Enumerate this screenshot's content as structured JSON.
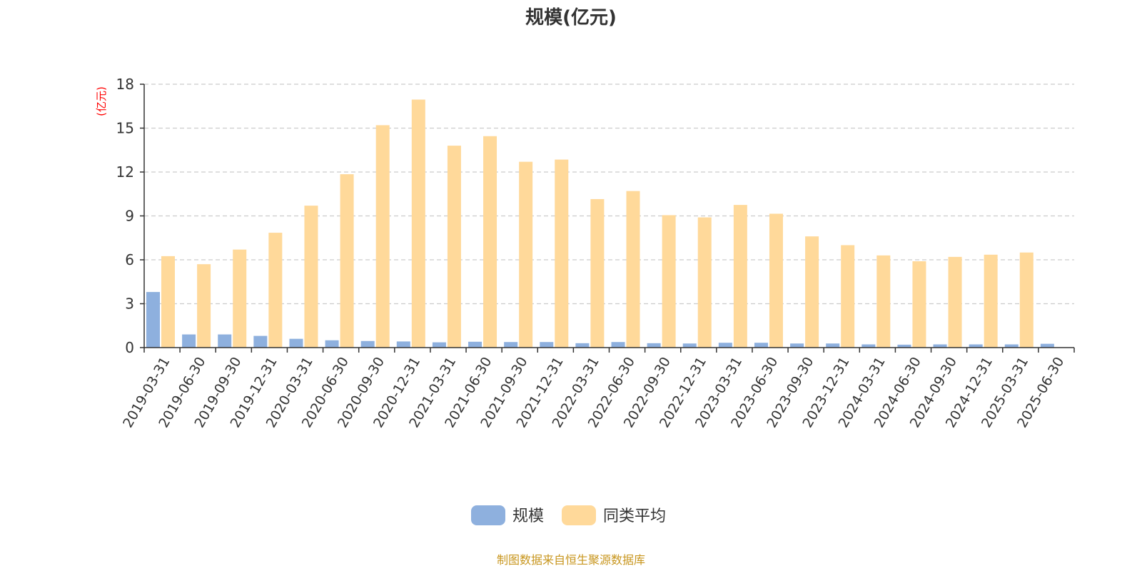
{
  "chart_data": {
    "type": "bar",
    "title": "规模(亿元)",
    "ylabel": "(亿元)",
    "ylim": [
      0,
      18
    ],
    "yticks": [
      0,
      3,
      6,
      9,
      12,
      15,
      18
    ],
    "grid": "horizontal-dashed",
    "legend_position": "bottom",
    "categories": [
      "2019-03-31",
      "2019-06-30",
      "2019-09-30",
      "2019-12-31",
      "2020-03-31",
      "2020-06-30",
      "2020-09-30",
      "2020-12-31",
      "2021-03-31",
      "2021-06-30",
      "2021-09-30",
      "2021-12-31",
      "2022-03-31",
      "2022-06-30",
      "2022-09-30",
      "2022-12-31",
      "2023-03-31",
      "2023-06-30",
      "2023-09-30",
      "2023-12-31",
      "2024-03-31",
      "2024-06-30",
      "2024-09-30",
      "2024-12-31",
      "2025-03-31",
      "2025-06-30"
    ],
    "series": [
      {
        "name": "规模",
        "color": "#8eb0de",
        "values": [
          3.8,
          0.9,
          0.9,
          0.8,
          0.6,
          0.5,
          0.45,
          0.42,
          0.36,
          0.4,
          0.38,
          0.38,
          0.3,
          0.38,
          0.3,
          0.28,
          0.33,
          0.33,
          0.28,
          0.28,
          0.22,
          0.2,
          0.22,
          0.22,
          0.22,
          0.26
        ]
      },
      {
        "name": "同类平均",
        "color": "#ffd99a",
        "values": [
          6.25,
          5.7,
          6.7,
          7.85,
          9.7,
          11.85,
          15.2,
          16.95,
          13.8,
          14.45,
          12.7,
          12.85,
          10.15,
          10.7,
          9.05,
          8.9,
          9.75,
          9.15,
          7.6,
          7.0,
          6.3,
          5.9,
          6.2,
          6.35,
          6.5,
          null
        ]
      }
    ],
    "source_note": "制图数据来自恒生聚源数据库",
    "unit_color": "#ff0000",
    "source_color": "#c8961e"
  }
}
